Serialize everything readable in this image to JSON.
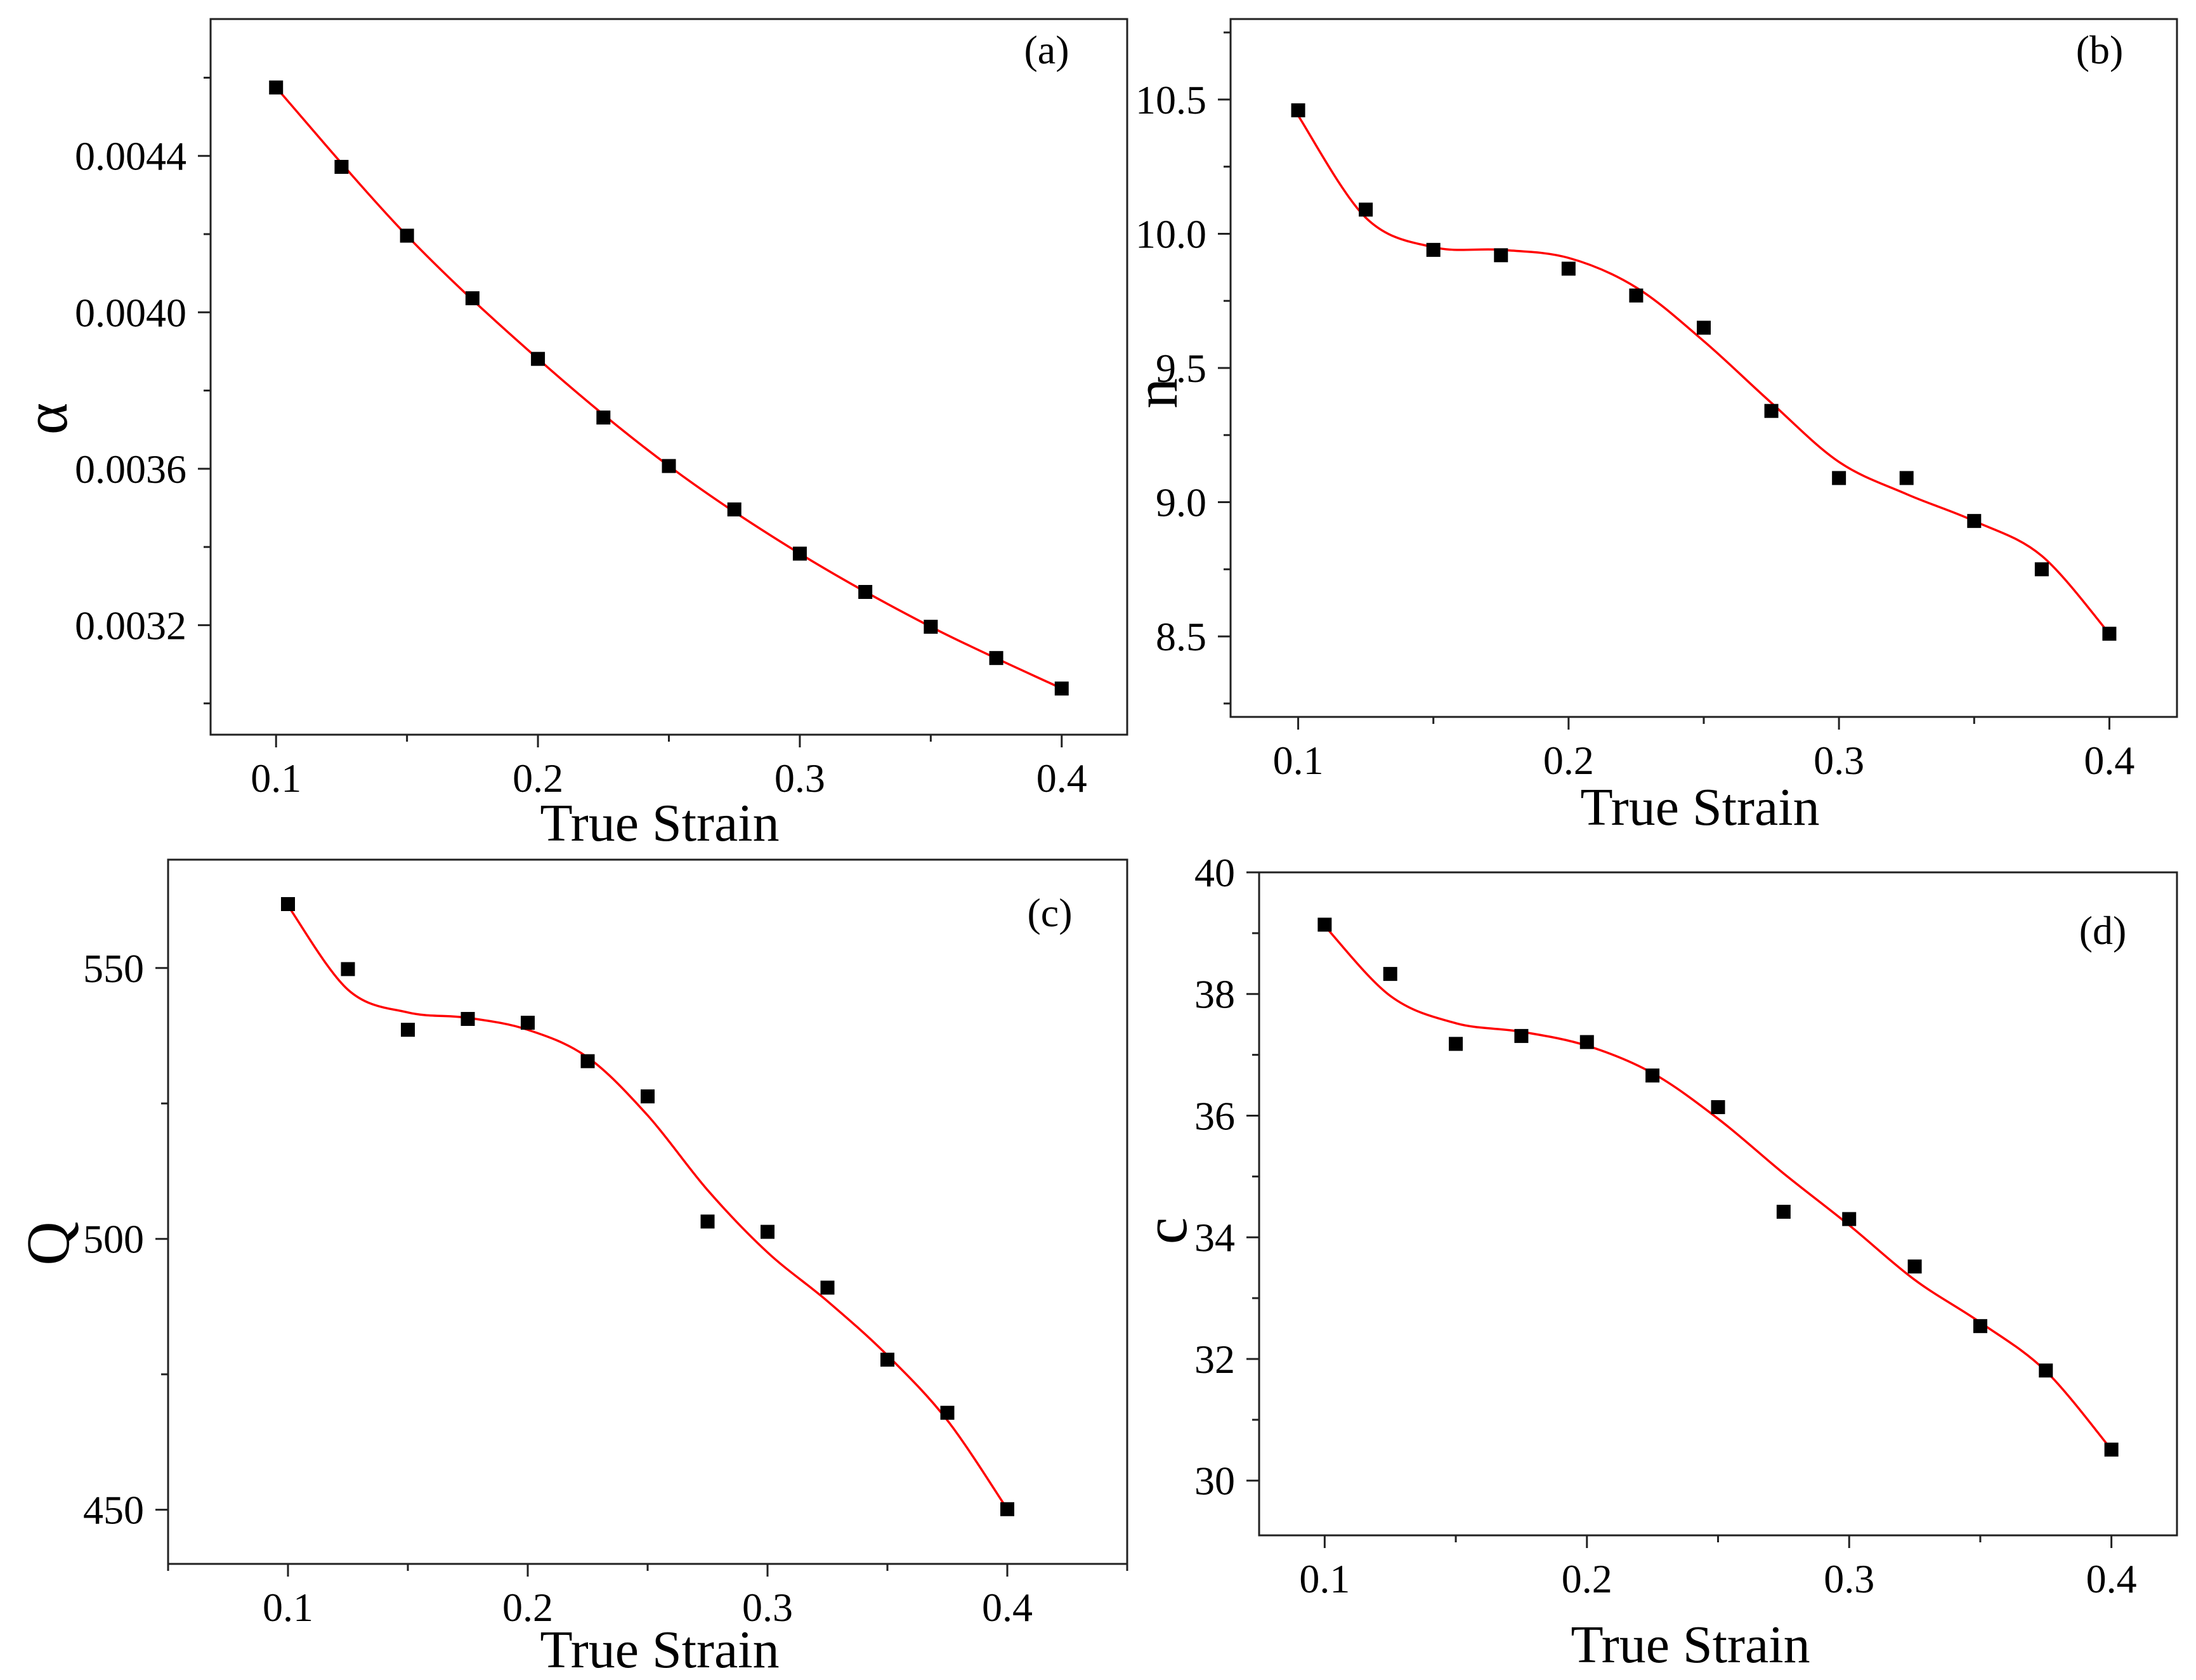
{
  "chart_data": [
    {
      "type": "scatter",
      "panel_label": "(a)",
      "xlabel": "True Strain",
      "ylabel": "α",
      "xlim": [
        0.075,
        0.425
      ],
      "ylim": [
        0.00292,
        0.00475
      ],
      "xticks": [
        0.1,
        0.2,
        0.3,
        0.4
      ],
      "xtick_labels": [
        "0.1",
        "0.2",
        "0.3",
        "0.4"
      ],
      "yticks": [
        0.0032,
        0.0036,
        0.004,
        0.0044
      ],
      "ytick_labels": [
        "0.0032",
        "0.0036",
        "0.0040",
        "0.0044"
      ],
      "x": [
        0.1,
        0.125,
        0.15,
        0.175,
        0.2,
        0.225,
        0.25,
        0.275,
        0.3,
        0.325,
        0.35,
        0.375,
        0.4
      ],
      "y": [
        0.004575,
        0.004372,
        0.004196,
        0.004036,
        0.003881,
        0.003731,
        0.003607,
        0.003496,
        0.003383,
        0.003285,
        0.003196,
        0.003116,
        0.003038
      ],
      "fit": {
        "x": [
          0.1,
          0.15,
          0.2,
          0.25,
          0.3,
          0.35,
          0.4
        ],
        "y": [
          0.004575,
          0.004196,
          0.003881,
          0.003607,
          0.003383,
          0.003196,
          0.003038
        ]
      },
      "legend": "none",
      "grid": false,
      "colors": {
        "points": "#000000",
        "fit": "#ff0000"
      }
    },
    {
      "type": "scatter",
      "panel_label": "(b)",
      "xlabel": "True Strain",
      "ylabel": "n",
      "xlim": [
        0.075,
        0.425
      ],
      "ylim": [
        8.2,
        10.8
      ],
      "xticks": [
        0.1,
        0.2,
        0.3,
        0.4
      ],
      "xtick_labels": [
        "0.1",
        "0.2",
        "0.3",
        "0.4"
      ],
      "yticks": [
        8.5,
        9.0,
        9.5,
        10.0,
        10.5
      ],
      "ytick_labels": [
        "8.5",
        "9.0",
        "9.5",
        "10.0",
        "10.5"
      ],
      "x": [
        0.1,
        0.125,
        0.15,
        0.175,
        0.2,
        0.225,
        0.25,
        0.275,
        0.3,
        0.325,
        0.35,
        0.375,
        0.4
      ],
      "y": [
        10.46,
        10.09,
        9.94,
        9.92,
        9.87,
        9.77,
        9.65,
        9.34,
        9.09,
        9.09,
        8.93,
        8.75,
        8.51
      ],
      "fit": {
        "x": [
          0.1,
          0.125,
          0.15,
          0.175,
          0.2,
          0.225,
          0.25,
          0.275,
          0.3,
          0.325,
          0.35,
          0.375,
          0.4
        ],
        "y": [
          10.44,
          10.06,
          9.95,
          9.94,
          9.91,
          9.8,
          9.6,
          9.37,
          9.15,
          9.03,
          8.93,
          8.8,
          8.51
        ]
      },
      "legend": "none",
      "grid": false,
      "colors": {
        "points": "#000000",
        "fit": "#ff0000"
      }
    },
    {
      "type": "scatter",
      "panel_label": "(c)",
      "xlabel": "True Strain",
      "ylabel": "Q",
      "xlim": [
        0.05,
        0.45
      ],
      "ylim": [
        440,
        570
      ],
      "xticks": [
        0.1,
        0.2,
        0.3,
        0.4
      ],
      "xtick_labels": [
        "0.1",
        "0.2",
        "0.3",
        "0.4"
      ],
      "yticks": [
        450,
        500,
        550
      ],
      "ytick_labels": [
        "450",
        "500",
        "550"
      ],
      "x": [
        0.1,
        0.125,
        0.15,
        0.175,
        0.2,
        0.225,
        0.25,
        0.275,
        0.3,
        0.325,
        0.35,
        0.375,
        0.4
      ],
      "y": [
        561.8,
        549.8,
        538.6,
        540.6,
        539.9,
        532.8,
        526.3,
        503.2,
        501.3,
        491.0,
        477.7,
        467.9,
        450.1
      ],
      "fit": {
        "x": [
          0.1,
          0.125,
          0.15,
          0.175,
          0.2,
          0.225,
          0.25,
          0.275,
          0.3,
          0.325,
          0.35,
          0.375,
          0.4
        ],
        "y": [
          561.5,
          546.0,
          541.8,
          540.8,
          538.6,
          533.5,
          522.8,
          509.0,
          497.5,
          488.5,
          478.5,
          466.5,
          450.1
        ]
      },
      "legend": "none",
      "grid": false,
      "colors": {
        "points": "#000000",
        "fit": "#ff0000"
      }
    },
    {
      "type": "scatter",
      "panel_label": "(d)",
      "xlabel": "True Strain",
      "ylabel": "c",
      "xlim": [
        0.075,
        0.425
      ],
      "ylim": [
        29.1,
        40
      ],
      "xticks": [
        0.1,
        0.2,
        0.3,
        0.4
      ],
      "xtick_labels": [
        "0.1",
        "0.2",
        "0.3",
        "0.4"
      ],
      "yticks": [
        30,
        32,
        34,
        36,
        38,
        40
      ],
      "ytick_labels": [
        "30",
        "32",
        "34",
        "36",
        "38",
        "40"
      ],
      "x": [
        0.1,
        0.125,
        0.15,
        0.175,
        0.2,
        0.225,
        0.25,
        0.275,
        0.3,
        0.325,
        0.35,
        0.375,
        0.4
      ],
      "y": [
        39.14,
        38.33,
        37.18,
        37.31,
        37.21,
        36.66,
        36.14,
        34.42,
        34.3,
        33.52,
        32.54,
        31.81,
        30.51
      ],
      "fit": {
        "x": [
          0.1,
          0.125,
          0.15,
          0.175,
          0.2,
          0.225,
          0.25,
          0.275,
          0.3,
          0.325,
          0.35,
          0.375,
          0.4
        ],
        "y": [
          39.12,
          37.97,
          37.52,
          37.38,
          37.15,
          36.7,
          35.95,
          35.05,
          34.2,
          33.3,
          32.6,
          31.8,
          30.51
        ]
      },
      "legend": "none",
      "grid": false,
      "colors": {
        "points": "#000000",
        "fit": "#ff0000"
      }
    }
  ]
}
